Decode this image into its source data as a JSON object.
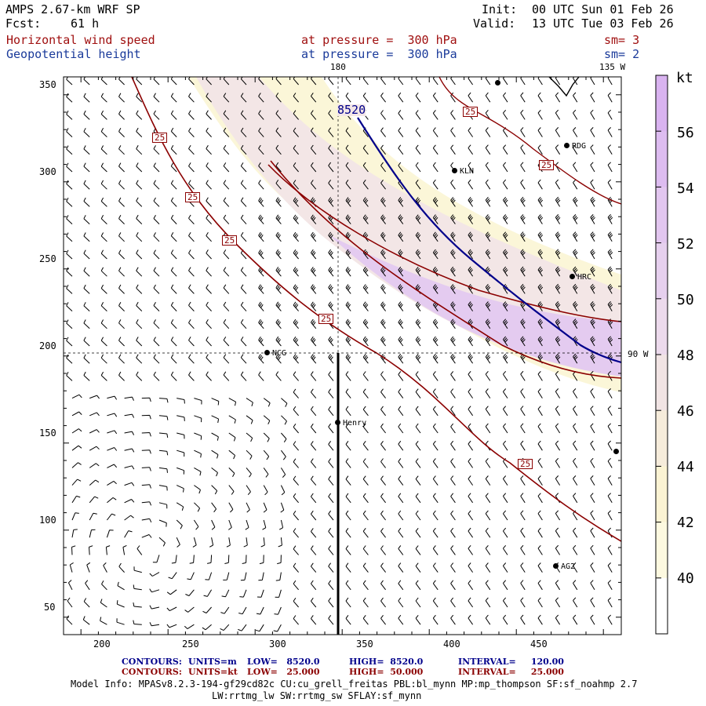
{
  "header": {
    "model": "AMPS 2.67-km WRF SP",
    "fcst_label": "Fcst:",
    "fcst_value": "61 h",
    "init_label": "Init:",
    "init_value": "00 UTC Sun 01 Feb 26",
    "valid_label": "Valid:",
    "valid_value": "13 UTC Tue 03 Feb 26",
    "field1": "Horizontal wind speed",
    "field1_level": "at pressure =  300 hPa",
    "field1_sm": "sm= 3",
    "field2": "Geopotential height",
    "field2_level": "at pressure =  300 hPa",
    "field2_sm": "sm= 2"
  },
  "map": {
    "x_ticks": [
      "200",
      "250",
      "300",
      "350",
      "400",
      "450"
    ],
    "y_ticks": [
      "50",
      "100",
      "150",
      "200",
      "250",
      "300",
      "350"
    ],
    "lon_labels": {
      "top_center": "180",
      "top_right": "135 W",
      "right": "90 W"
    },
    "stations": [
      {
        "name": "RDG",
        "label": "RDG"
      },
      {
        "name": "KLN",
        "label": "KLN"
      },
      {
        "name": "HRC",
        "label": "HRC"
      },
      {
        "name": "NCG",
        "label": "NCG"
      },
      {
        "name": "Henry",
        "label": "Henry"
      },
      {
        "name": "AG2",
        "label": "AG2"
      }
    ],
    "contour_labels": {
      "height": "8520",
      "wind": [
        "25",
        "25",
        "25",
        "25",
        "25",
        "25",
        "25"
      ]
    },
    "colors": {
      "height_contour": "#00008b",
      "wind_contour": "#8b0000",
      "shade_40": "#fbf6d8",
      "shade_46": "#f3e6e6",
      "shade_50": "#e4cbf0"
    }
  },
  "colorbar": {
    "unit": "kt",
    "labels": [
      "56",
      "54",
      "52",
      "50",
      "48",
      "46",
      "44",
      "42",
      "40"
    ],
    "colors": [
      "#d9b3f0",
      "#ddbcf0",
      "#e2c6ef",
      "#e6d0ee",
      "#ecdaec",
      "#f1e4e4",
      "#f6ecdb",
      "#fbf3d3",
      "#fdf9e0",
      "#ffffff"
    ]
  },
  "footer": {
    "row1": {
      "label": "CONTOURS:",
      "units": "UNITS=m",
      "low": "LOW=   8520.0",
      "high": "HIGH=  8520.0",
      "interval": "INTERVAL=     120.00"
    },
    "row2": {
      "label": "CONTOURS:",
      "units": "UNITS=kt",
      "low": "LOW=   25.000",
      "high": "HIGH=  50.000",
      "interval": "INTERVAL=     25.000"
    },
    "info1": "Model Info: MPASv8.2.3-194-gf29cd82c CU:cu_grell_freitas PBL:bl_mynn MP:mp_thompson SF:sf_noahmp 2.7",
    "info2": "LW:rrtmg_lw SW:rrtmg_sw SFLAY:sf_mynn"
  }
}
